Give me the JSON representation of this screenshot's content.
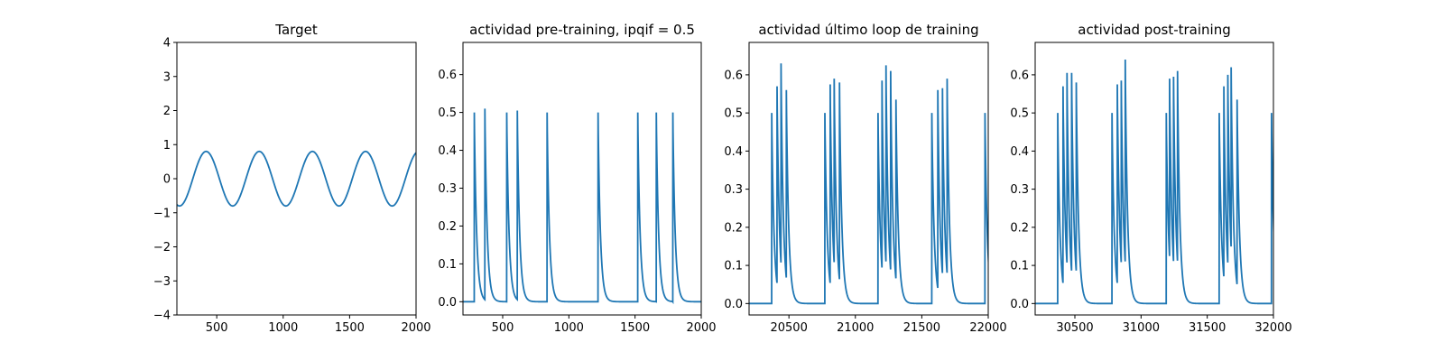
{
  "line_color": "#1f77b4",
  "chart_data": [
    {
      "type": "line",
      "title": "Target",
      "xlim": [
        200,
        2000
      ],
      "ylim": [
        -4,
        4
      ],
      "xticks": [
        500,
        1000,
        1500,
        2000
      ],
      "xtick_labels": [
        "500",
        "1000",
        "1500",
        "2000"
      ],
      "yticks": [
        -4,
        -3,
        -2,
        -1,
        0,
        1,
        2,
        3,
        4
      ],
      "ytick_labels": [
        "−4",
        "−3",
        "−2",
        "−1",
        "0",
        "1",
        "2",
        "3",
        "4"
      ],
      "series": [
        {
          "values_note": "sinusoid, amplitude 0.8, period 400, minima near x=220,620,1020,1420,1820; maxima near x=420,820,1220,1620",
          "x": [
            200,
            220,
            270,
            320,
            370,
            420,
            470,
            520,
            570,
            620,
            670,
            720,
            770,
            820,
            870,
            920,
            970,
            1020,
            1070,
            1120,
            1170,
            1220,
            1270,
            1320,
            1370,
            1420,
            1470,
            1520,
            1570,
            1620,
            1670,
            1720,
            1770,
            1820,
            1870,
            1920,
            1970,
            2000
          ],
          "y": [
            -0.78,
            -0.8,
            -0.57,
            0.0,
            0.57,
            0.8,
            0.57,
            0.0,
            -0.57,
            -0.8,
            -0.57,
            0.0,
            0.57,
            0.8,
            0.57,
            0.0,
            -0.57,
            -0.8,
            -0.57,
            0.0,
            0.57,
            0.8,
            0.57,
            0.0,
            -0.57,
            -0.8,
            -0.57,
            0.0,
            0.57,
            0.8,
            0.57,
            0.0,
            -0.57,
            -0.8,
            -0.57,
            0.0,
            0.57,
            0.8
          ]
        }
      ]
    },
    {
      "type": "line",
      "title": "actividad pre-training, ipqif = 0.5",
      "xlim": [
        200,
        2000
      ],
      "ylim": [
        -0.035,
        0.685
      ],
      "xticks": [
        500,
        1000,
        1500,
        2000
      ],
      "xtick_labels": [
        "500",
        "1000",
        "1500",
        "2000"
      ],
      "yticks": [
        0.0,
        0.1,
        0.2,
        0.3,
        0.4,
        0.5,
        0.6
      ],
      "ytick_labels": [
        "0.0",
        "0.1",
        "0.2",
        "0.3",
        "0.4",
        "0.5",
        "0.6"
      ],
      "series": [
        {
          "spikes": [
            {
              "t": 285,
              "peak": 0.5
            },
            {
              "t": 365,
              "peak": 0.51
            },
            {
              "t": 530,
              "peak": 0.5
            },
            {
              "t": 610,
              "peak": 0.505
            },
            {
              "t": 835,
              "peak": 0.5
            },
            {
              "t": 1220,
              "peak": 0.5
            },
            {
              "t": 1520,
              "peak": 0.5
            },
            {
              "t": 1660,
              "peak": 0.5
            },
            {
              "t": 1785,
              "peak": 0.5
            }
          ],
          "decay_tau": 18
        }
      ]
    },
    {
      "type": "line",
      "title": "actividad último loop de training",
      "xlim": [
        20200,
        22000
      ],
      "ylim": [
        -0.03,
        0.685
      ],
      "xticks": [
        20500,
        21000,
        21500,
        22000
      ],
      "xtick_labels": [
        "20500",
        "21000",
        "21500",
        "22000"
      ],
      "yticks": [
        0.0,
        0.1,
        0.2,
        0.3,
        0.4,
        0.5,
        0.6
      ],
      "ytick_labels": [
        "0.0",
        "0.1",
        "0.2",
        "0.3",
        "0.4",
        "0.5",
        "0.6"
      ],
      "series": [
        {
          "spikes": [
            {
              "t": 20370,
              "peak": 0.5
            },
            {
              "t": 20410,
              "peak": 0.57
            },
            {
              "t": 20440,
              "peak": 0.63
            },
            {
              "t": 20480,
              "peak": 0.56
            },
            {
              "t": 20770,
              "peak": 0.5
            },
            {
              "t": 20810,
              "peak": 0.575
            },
            {
              "t": 20840,
              "peak": 0.59
            },
            {
              "t": 20880,
              "peak": 0.58
            },
            {
              "t": 21170,
              "peak": 0.5
            },
            {
              "t": 21200,
              "peak": 0.585
            },
            {
              "t": 21230,
              "peak": 0.625
            },
            {
              "t": 21265,
              "peak": 0.61
            },
            {
              "t": 21305,
              "peak": 0.535
            },
            {
              "t": 21575,
              "peak": 0.5
            },
            {
              "t": 21620,
              "peak": 0.56
            },
            {
              "t": 21655,
              "peak": 0.565
            },
            {
              "t": 21690,
              "peak": 0.59
            },
            {
              "t": 21975,
              "peak": 0.5
            }
          ],
          "decay_tau": 18
        }
      ]
    },
    {
      "type": "line",
      "title": "actividad post-training",
      "xlim": [
        30200,
        32000
      ],
      "ylim": [
        -0.03,
        0.685
      ],
      "xticks": [
        30500,
        31000,
        31500,
        32000
      ],
      "xtick_labels": [
        "30500",
        "31000",
        "31500",
        "32000"
      ],
      "yticks": [
        0.0,
        0.1,
        0.2,
        0.3,
        0.4,
        0.5,
        0.6
      ],
      "ytick_labels": [
        "0.0",
        "0.1",
        "0.2",
        "0.3",
        "0.4",
        "0.5",
        "0.6"
      ],
      "series": [
        {
          "spikes": [
            {
              "t": 30370,
              "peak": 0.5
            },
            {
              "t": 30410,
              "peak": 0.57
            },
            {
              "t": 30440,
              "peak": 0.605
            },
            {
              "t": 30475,
              "peak": 0.605
            },
            {
              "t": 30510,
              "peak": 0.58
            },
            {
              "t": 30780,
              "peak": 0.5
            },
            {
              "t": 30820,
              "peak": 0.575
            },
            {
              "t": 30850,
              "peak": 0.585
            },
            {
              "t": 30880,
              "peak": 0.64
            },
            {
              "t": 31190,
              "peak": 0.5
            },
            {
              "t": 31215,
              "peak": 0.59
            },
            {
              "t": 31245,
              "peak": 0.595
            },
            {
              "t": 31275,
              "peak": 0.61
            },
            {
              "t": 31590,
              "peak": 0.5
            },
            {
              "t": 31625,
              "peak": 0.57
            },
            {
              "t": 31655,
              "peak": 0.6
            },
            {
              "t": 31680,
              "peak": 0.62
            },
            {
              "t": 31725,
              "peak": 0.535
            },
            {
              "t": 31985,
              "peak": 0.5
            }
          ],
          "decay_tau": 18
        }
      ]
    }
  ]
}
